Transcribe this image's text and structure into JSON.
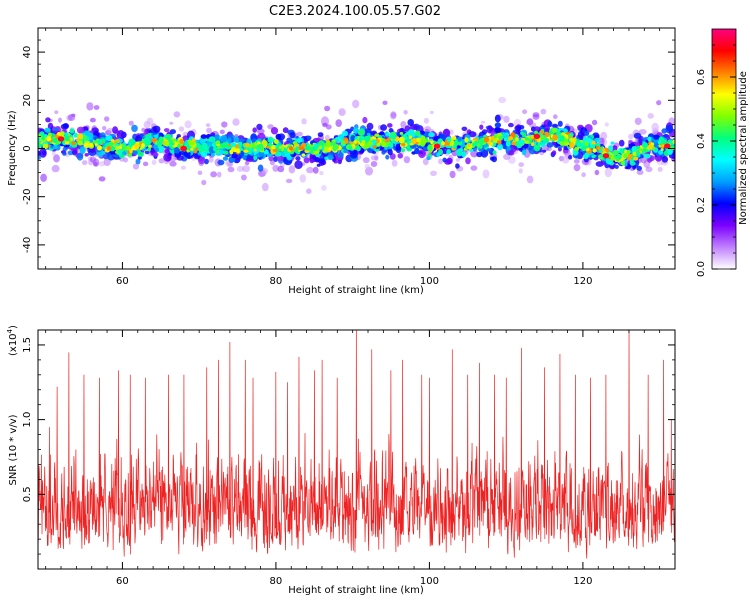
{
  "title": "C2E3.2024.100.05.57.G02",
  "chart_data": [
    {
      "type": "heatmap",
      "xlabel": "Height of straight line (km)",
      "ylabel": "Frequency (Hz)",
      "xlim": [
        49,
        132
      ],
      "ylim": [
        -50,
        50
      ],
      "x_ticks": [
        60,
        80,
        100,
        120
      ],
      "y_ticks": [
        -40,
        -20,
        0,
        20,
        40
      ],
      "colorbar": {
        "label": "Normalized spectral amplitude",
        "range": [
          0,
          0.75
        ],
        "ticks": [
          0.0,
          0.2,
          0.4,
          0.6
        ],
        "tick_labels": [
          "0.0",
          "0.2",
          "0.4",
          "0.6"
        ],
        "colors": [
          "#ffffff",
          "#c080ff",
          "#7b00ff",
          "#0000ff",
          "#00a0ff",
          "#00ffff",
          "#00ff80",
          "#80ff00",
          "#ffff00",
          "#ff8000",
          "#ff0000",
          "#ff0080"
        ]
      },
      "ridge": {
        "center_points": [
          [
            49,
            3
          ],
          [
            52,
            4
          ],
          [
            55,
            3
          ],
          [
            58,
            1
          ],
          [
            61,
            0
          ],
          [
            64,
            3
          ],
          [
            67,
            2
          ],
          [
            70,
            0
          ],
          [
            73,
            1
          ],
          [
            76,
            0
          ],
          [
            79,
            1
          ],
          [
            82,
            0
          ],
          [
            85,
            0
          ],
          [
            88,
            1
          ],
          [
            91,
            3
          ],
          [
            94,
            3
          ],
          [
            97,
            4
          ],
          [
            100,
            2
          ],
          [
            103,
            2
          ],
          [
            106,
            2
          ],
          [
            109,
            4
          ],
          [
            112,
            3
          ],
          [
            115,
            5
          ],
          [
            118,
            4
          ],
          [
            120,
            1
          ],
          [
            122,
            0
          ],
          [
            124,
            -4
          ],
          [
            126,
            -3
          ],
          [
            128,
            0
          ],
          [
            130,
            2
          ],
          [
            132,
            1
          ]
        ],
        "typical_halfwidth_hz": 7,
        "peaks": [
          [
            52,
            4
          ],
          [
            68,
            0
          ],
          [
            101,
            1
          ],
          [
            114,
            5
          ],
          [
            123,
            -3
          ],
          [
            131,
            1
          ]
        ]
      }
    },
    {
      "type": "line",
      "xlabel": "Height of straight line (km)",
      "ylabel": "SNR (10 * v/v)",
      "y_multiplier_label": "(x10",
      "y_multiplier_exp": "4",
      "y_multiplier_close": ")",
      "xlim": [
        49,
        132
      ],
      "ylim": [
        0,
        1.6
      ],
      "x_ticks": [
        60,
        80,
        100,
        120
      ],
      "y_ticks": [
        0.5,
        1.0,
        1.5
      ],
      "y_tick_labels": [
        "0.5",
        "1.0",
        "1.5"
      ],
      "series": [
        {
          "color": "#ee2222",
          "baseline_mean": 0.42,
          "typical_max": 1.0,
          "spikes": [
            [
              50.5,
              0.95
            ],
            [
              51.5,
              1.22
            ],
            [
              53,
              1.45
            ],
            [
              55,
              1.3
            ],
            [
              57,
              1.28
            ],
            [
              59.5,
              1.33
            ],
            [
              61,
              1.3
            ],
            [
              63,
              1.28
            ],
            [
              66,
              1.3
            ],
            [
              68,
              1.3
            ],
            [
              71,
              1.35
            ],
            [
              72.5,
              1.4
            ],
            [
              74,
              1.52
            ],
            [
              76,
              1.4
            ],
            [
              77,
              1.28
            ],
            [
              80,
              1.32
            ],
            [
              81.5,
              1.25
            ],
            [
              83,
              1.42
            ],
            [
              85,
              1.33
            ],
            [
              86,
              1.4
            ],
            [
              88,
              1.28
            ],
            [
              90.5,
              1.6
            ],
            [
              92.5,
              1.47
            ],
            [
              95,
              1.33
            ],
            [
              96.5,
              1.4
            ],
            [
              99,
              1.3
            ],
            [
              100,
              1.28
            ],
            [
              103,
              1.47
            ],
            [
              105,
              1.3
            ],
            [
              106.5,
              1.38
            ],
            [
              108.5,
              1.3
            ],
            [
              110,
              1.28
            ],
            [
              112,
              1.48
            ],
            [
              115,
              1.35
            ],
            [
              117,
              1.44
            ],
            [
              119,
              1.3
            ],
            [
              121,
              1.28
            ],
            [
              123,
              1.3
            ],
            [
              126,
              1.62
            ],
            [
              128.5,
              1.3
            ],
            [
              130.5,
              1.4
            ],
            [
              131.5,
              1.0
            ]
          ]
        }
      ]
    }
  ]
}
